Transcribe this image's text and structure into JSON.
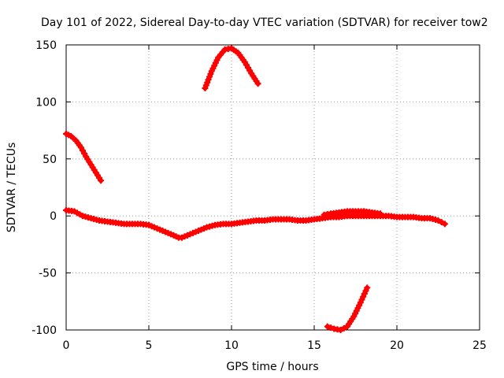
{
  "chart_data": {
    "type": "scatter",
    "title": "Day 101 of 2022, Sidereal Day-to-day VTEC variation (SDTVAR) for receiver tow2",
    "xlabel": "GPS time / hours",
    "ylabel": "SDTVAR / TECUs",
    "xlim": [
      0,
      25
    ],
    "ylim": [
      -100,
      150
    ],
    "xticks": [
      0,
      5,
      10,
      15,
      20,
      25
    ],
    "yticks": [
      -100,
      -50,
      0,
      50,
      100,
      150
    ],
    "xtick_labels": [
      "0",
      "5",
      "10",
      "15",
      "20",
      "25"
    ],
    "ytick_labels": [
      "-100",
      "-50",
      "0",
      "50",
      "100",
      "150"
    ],
    "grid": true,
    "marker": "plus",
    "series_color": "#ff0000",
    "series": [
      {
        "name": "arc-main",
        "x": [
          0.0,
          0.5,
          1.0,
          1.5,
          2.0,
          2.5,
          3.0,
          3.5,
          4.0,
          4.5,
          5.0,
          5.5,
          6.0,
          6.5,
          6.8,
          7.0,
          7.5,
          8.0,
          8.5,
          9.0,
          9.5,
          10.0,
          10.5,
          11.0,
          11.5,
          12.0,
          12.5,
          13.0,
          13.5,
          14.0,
          14.5,
          15.0,
          15.5,
          16.0,
          16.5,
          17.0,
          17.5,
          18.0,
          18.5,
          19.0,
          19.5,
          20.0,
          20.5,
          21.0,
          21.5,
          22.0,
          22.5,
          22.9
        ],
        "y": [
          5,
          4,
          0,
          -2,
          -4,
          -5,
          -6,
          -7,
          -7,
          -7,
          -8,
          -11,
          -14,
          -17,
          -19,
          -19,
          -16,
          -13,
          -10,
          -8,
          -7,
          -7,
          -6,
          -5,
          -4,
          -4,
          -3,
          -3,
          -3,
          -4,
          -4,
          -3,
          -2,
          -1,
          -1,
          0,
          0,
          0,
          0,
          0,
          0,
          -1,
          -1,
          -1,
          -2,
          -2,
          -4,
          -7
        ]
      },
      {
        "name": "arc-upper-left",
        "x": [
          0.0,
          0.3,
          0.6,
          0.9,
          1.2,
          1.5,
          1.8,
          2.1
        ],
        "y": [
          72,
          70,
          66,
          60,
          52,
          45,
          38,
          31
        ]
      },
      {
        "name": "arc-peak",
        "x": [
          8.4,
          8.8,
          9.2,
          9.6,
          10.0,
          10.4,
          10.8,
          11.2,
          11.6
        ],
        "y": [
          112,
          127,
          139,
          146,
          147,
          143,
          135,
          125,
          116
        ]
      },
      {
        "name": "arc-low",
        "x": [
          15.8,
          16.2,
          16.6,
          17.0,
          17.4,
          17.8,
          18.2
        ],
        "y": [
          -97,
          -99,
          -100,
          -97,
          -88,
          -76,
          -63
        ]
      },
      {
        "name": "arc-overlap-high",
        "x": [
          15.6,
          16.0,
          16.5,
          17.0,
          17.5,
          18.0,
          18.5,
          19.0
        ],
        "y": [
          1,
          2,
          3,
          4,
          4,
          4,
          3,
          2
        ]
      }
    ]
  }
}
